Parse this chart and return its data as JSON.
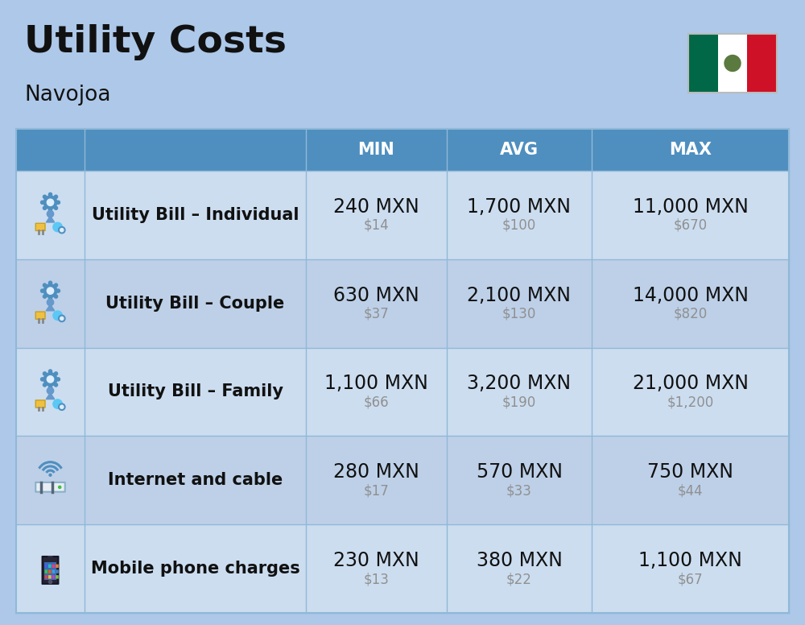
{
  "title": "Utility Costs",
  "subtitle": "Navojoa",
  "background_color": "#adc8e8",
  "header_color": "#4f8fbf",
  "header_text_color": "#ffffff",
  "row_color_odd": "#ccddf0",
  "row_color_even": "#bdd0e8",
  "cell_border_color": "#90b8d8",
  "columns": [
    "MIN",
    "AVG",
    "MAX"
  ],
  "rows": [
    {
      "label": "Utility Bill – Individual",
      "icon": "utility",
      "min_mxn": "240 MXN",
      "min_usd": "$14",
      "avg_mxn": "1,700 MXN",
      "avg_usd": "$100",
      "max_mxn": "11,000 MXN",
      "max_usd": "$670"
    },
    {
      "label": "Utility Bill – Couple",
      "icon": "utility",
      "min_mxn": "630 MXN",
      "min_usd": "$37",
      "avg_mxn": "2,100 MXN",
      "avg_usd": "$130",
      "max_mxn": "14,000 MXN",
      "max_usd": "$820"
    },
    {
      "label": "Utility Bill – Family",
      "icon": "utility",
      "min_mxn": "1,100 MXN",
      "min_usd": "$66",
      "avg_mxn": "3,200 MXN",
      "avg_usd": "$190",
      "max_mxn": "21,000 MXN",
      "max_usd": "$1,200"
    },
    {
      "label": "Internet and cable",
      "icon": "internet",
      "min_mxn": "280 MXN",
      "min_usd": "$17",
      "avg_mxn": "570 MXN",
      "avg_usd": "$33",
      "max_mxn": "750 MXN",
      "max_usd": "$44"
    },
    {
      "label": "Mobile phone charges",
      "icon": "mobile",
      "min_mxn": "230 MXN",
      "min_usd": "$13",
      "avg_mxn": "380 MXN",
      "avg_usd": "$22",
      "max_mxn": "1,100 MXN",
      "max_usd": "$67"
    }
  ],
  "title_fontsize": 34,
  "subtitle_fontsize": 19,
  "header_fontsize": 15,
  "cell_mxn_fontsize": 17,
  "cell_usd_fontsize": 12,
  "label_fontsize": 15,
  "flag_colors": [
    "#006847",
    "#ffffff",
    "#ce1126"
  ],
  "usd_color": "#909090"
}
